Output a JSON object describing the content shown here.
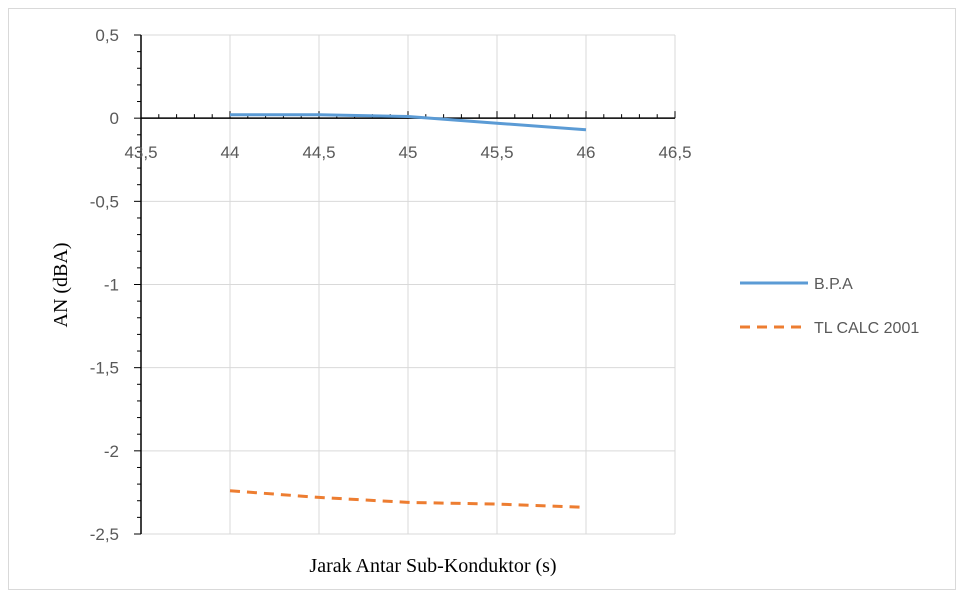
{
  "chart_data": {
    "type": "line",
    "title": "",
    "xlabel": "Jarak Antar Sub-Konduktor (s)",
    "ylabel": "AN (dBA)",
    "xlim": [
      43.5,
      46.5
    ],
    "ylim": [
      -2.5,
      0.5
    ],
    "x_ticks": [
      "43,5",
      "44",
      "44,5",
      "45",
      "45,5",
      "46",
      "46,5"
    ],
    "y_ticks": [
      "0,5",
      "0",
      "-0,5",
      "-1",
      "-1,5",
      "-2",
      "-2,5"
    ],
    "grid": true,
    "legend_position": "right",
    "series": [
      {
        "name": "B.P.A",
        "color": "#5b9bd5",
        "style": "solid",
        "x": [
          44,
          44.5,
          45,
          45.5,
          46
        ],
        "y": [
          0.02,
          0.02,
          0.01,
          -0.03,
          -0.07
        ]
      },
      {
        "name": "TL CALC 2001",
        "color": "#ed7d31",
        "style": "dashed",
        "x": [
          44,
          44.5,
          45,
          45.5,
          46
        ],
        "y": [
          -2.24,
          -2.28,
          -2.31,
          -2.32,
          -2.34
        ]
      }
    ]
  }
}
